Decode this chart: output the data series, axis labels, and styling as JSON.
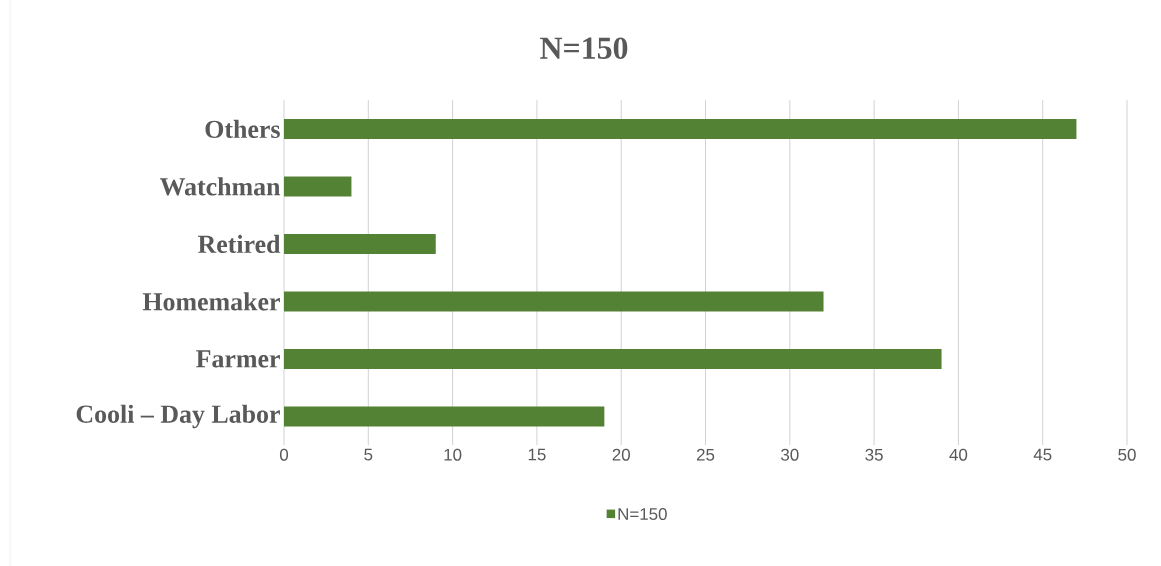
{
  "chart_data": {
    "type": "bar",
    "orientation": "horizontal",
    "title": "N=150",
    "categories": [
      "Others",
      "Watchman",
      "Retired",
      "Homemaker",
      "Farmer",
      "Cooli – Day Labor"
    ],
    "series": [
      {
        "name": "N=150",
        "color": "#548235",
        "values": [
          47,
          4,
          9,
          32,
          39,
          19
        ]
      }
    ],
    "xlim": [
      0,
      50
    ],
    "xticks": [
      0,
      5,
      10,
      15,
      20,
      25,
      30,
      35,
      40,
      45,
      50
    ],
    "grid": "x",
    "legend": "bottom"
  }
}
